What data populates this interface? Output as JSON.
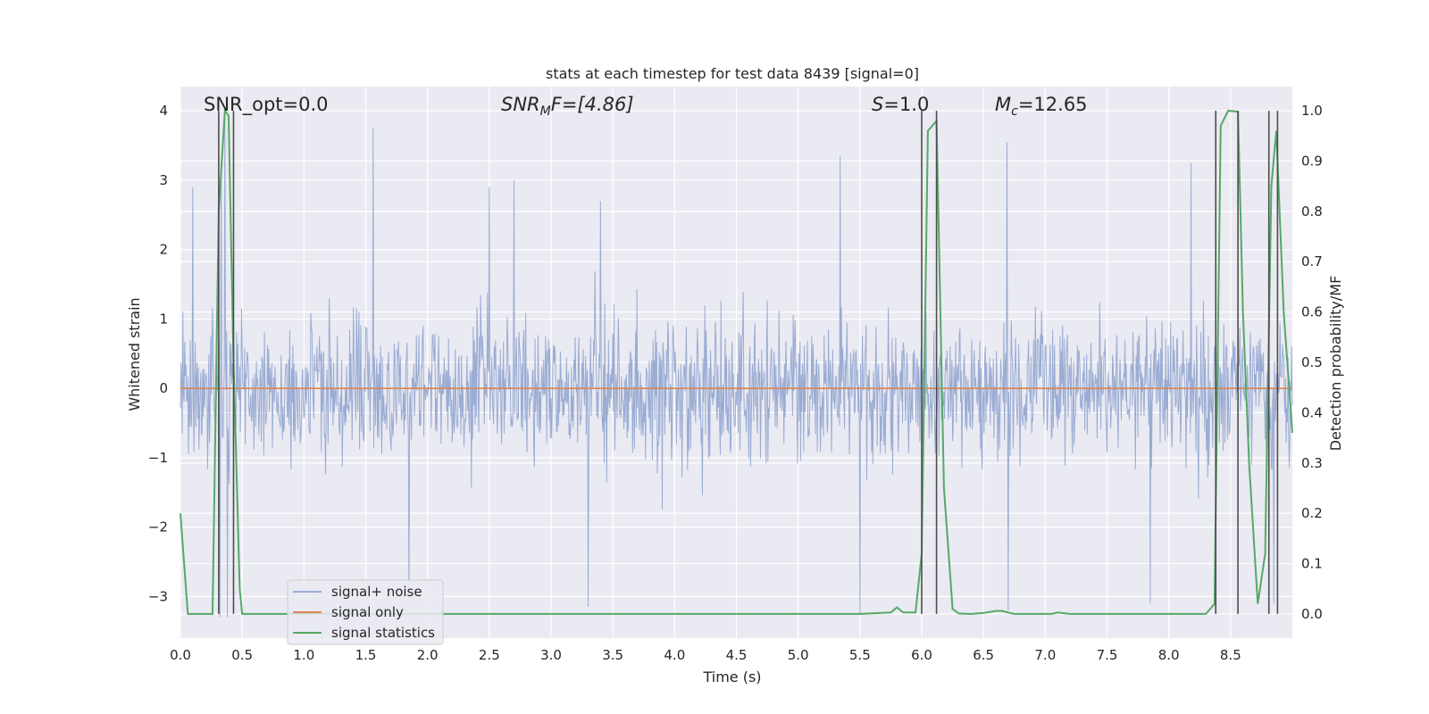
{
  "chart_data": {
    "type": "line",
    "title": "stats at each timestep for test data 8439 [signal=0]",
    "xlabel": "Time (s)",
    "ylabel": "Whitened strain",
    "y2label": "Detection probability/MF",
    "xlim": [
      0.0,
      9.0
    ],
    "ylim": [
      -3.6,
      4.35
    ],
    "y2lim": [
      -0.048,
      1.048
    ],
    "x_ticks": [
      "0.0",
      "0.5",
      "1.0",
      "1.5",
      "2.0",
      "2.5",
      "3.0",
      "3.5",
      "4.0",
      "4.5",
      "5.0",
      "5.5",
      "6.0",
      "6.5",
      "7.0",
      "7.5",
      "8.0",
      "8.5"
    ],
    "y_ticks": [
      "4",
      "3",
      "2",
      "1",
      "0",
      "−1",
      "−2",
      "−3"
    ],
    "y2_ticks": [
      "1.0",
      "0.9",
      "0.8",
      "0.7",
      "0.6",
      "0.5",
      "0.4",
      "0.3",
      "0.2",
      "0.1",
      "0.0"
    ],
    "grid": true,
    "legend_position": "lower-left",
    "annotations": {
      "snr_opt": "SNR_opt=0.0",
      "snr_mf_base": "SNR",
      "snr_mf_sub": "M",
      "snr_mf_tail": "F=[4.86]",
      "s_base": "S",
      "s_tail": "=1.0",
      "mc_base": "M",
      "mc_sub": "c",
      "mc_tail": "=12.65"
    },
    "series": [
      {
        "name": "signal+ noise",
        "color": "#9aacd3",
        "kind": "noise",
        "sample_rate": 200,
        "typical_envelope": [
          -1.9,
          1.9
        ],
        "peaks": [
          {
            "x": 0.36,
            "y": 4.0
          },
          {
            "x": 0.33,
            "y": 3.2
          },
          {
            "x": 0.1,
            "y": 2.9
          },
          {
            "x": 1.56,
            "y": 3.75
          },
          {
            "x": 2.5,
            "y": 2.9
          },
          {
            "x": 2.7,
            "y": 3.0
          },
          {
            "x": 3.4,
            "y": 2.7
          },
          {
            "x": 5.34,
            "y": 3.35
          },
          {
            "x": 6.69,
            "y": 3.55
          },
          {
            "x": 8.18,
            "y": 3.25
          },
          {
            "x": 0.32,
            "y": -3.3
          },
          {
            "x": 0.38,
            "y": -3.3
          },
          {
            "x": 1.85,
            "y": -3.1
          },
          {
            "x": 3.3,
            "y": -3.15
          },
          {
            "x": 5.5,
            "y": -3.25
          },
          {
            "x": 6.7,
            "y": -3.2
          },
          {
            "x": 7.85,
            "y": -3.1
          },
          {
            "x": 8.85,
            "y": -3.1
          }
        ]
      },
      {
        "name": "signal only",
        "color": "#dd8452",
        "x": [
          0.0,
          9.0
        ],
        "y": [
          0.0,
          0.0
        ]
      },
      {
        "name": "signal statistics",
        "color": "#55a868",
        "axis": "right",
        "x": [
          0.0,
          0.06,
          0.12,
          0.2,
          0.26,
          0.31,
          0.36,
          0.39,
          0.43,
          0.48,
          0.5,
          0.56,
          0.7,
          1.0,
          2.0,
          3.0,
          4.0,
          4.5,
          5.0,
          5.5,
          5.75,
          5.8,
          5.85,
          5.95,
          6.0,
          6.05,
          6.12,
          6.18,
          6.25,
          6.3,
          6.4,
          6.5,
          6.6,
          6.65,
          6.75,
          6.9,
          7.05,
          7.1,
          7.2,
          7.5,
          8.0,
          8.3,
          8.37,
          8.42,
          8.48,
          8.56,
          8.6,
          8.65,
          8.72,
          8.78,
          8.83,
          8.87,
          8.93,
          9.0
        ],
        "y": [
          0.2,
          0.0,
          0.0,
          0.0,
          0.0,
          0.8,
          1.0,
          0.99,
          0.5,
          0.05,
          0.0,
          0.0,
          0.0,
          0.0,
          0.0,
          0.0,
          0.0,
          0.0,
          0.0,
          0.0,
          0.003,
          0.013,
          0.003,
          0.003,
          0.12,
          0.96,
          0.98,
          0.25,
          0.01,
          0.001,
          0.0,
          0.002,
          0.006,
          0.006,
          0.0,
          0.0,
          0.0,
          0.003,
          0.0,
          0.0,
          0.0,
          0.0,
          0.02,
          0.97,
          1.0,
          0.998,
          0.6,
          0.3,
          0.02,
          0.12,
          0.85,
          0.96,
          0.6,
          0.36
        ]
      }
    ],
    "vertical_lines_x": [
      0.31,
      0.43,
      6.0,
      6.12,
      8.38,
      8.56,
      8.81,
      8.88
    ]
  },
  "colors": {
    "plot_background": "#eaeaf2",
    "grid": "#ffffff",
    "vline": "#4d4d4d"
  }
}
